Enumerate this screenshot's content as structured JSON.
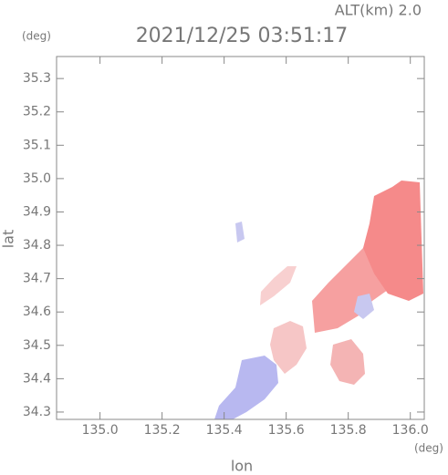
{
  "chart_data": {
    "type": "map",
    "title": "2021/12/25 03:51:17",
    "altitude_label": "ALT(km) 2.0",
    "x_unit": "(deg)",
    "y_unit": "(deg)",
    "xlabel": "lon",
    "ylabel": "lat",
    "xlim": [
      134.86,
      136.045
    ],
    "ylim": [
      34.278,
      35.366
    ],
    "xticks": [
      {
        "value": 135,
        "label": "135.0"
      },
      135.2,
      135.4,
      135.6,
      135.8,
      {
        "value": 136,
        "label": "136.0"
      }
    ],
    "yticks": [
      34.3,
      34.4,
      34.5,
      34.6,
      34.7,
      34.8,
      34.9,
      {
        "value": 35,
        "label": "35.0"
      },
      35.1,
      35.2,
      35.3
    ]
  }
}
